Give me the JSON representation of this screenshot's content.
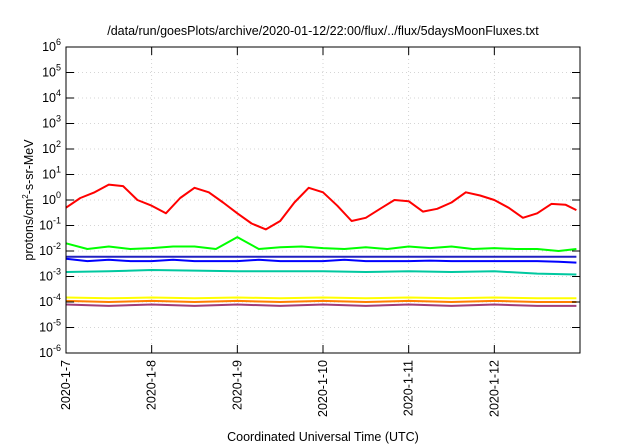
{
  "chart_data": {
    "type": "line",
    "title": "/data/run/goesPlots/archive/2020-01-12/22:00/flux/../flux/5daysMoonFluxes.txt",
    "xlabel": "Coordinated Universal Time (UTC)",
    "ylabel": "protons/cm²-s-sr-MeV",
    "ylabel_parts": {
      "pre": "protons/cm",
      "sup": "2",
      "post": "-s-sr-MeV"
    },
    "yscale": "log",
    "ylim": [
      1e-06,
      1000000.0
    ],
    "xlim": [
      "2020-01-07",
      "2020-01-13"
    ],
    "grid": true,
    "legend": "none",
    "y_ticks": [
      {
        "base": "10",
        "exp": "-6",
        "value": 1e-06
      },
      {
        "base": "10",
        "exp": "-5",
        "value": 1e-05
      },
      {
        "base": "10",
        "exp": "-4",
        "value": 0.0001
      },
      {
        "base": "10",
        "exp": "-3",
        "value": 0.001
      },
      {
        "base": "10",
        "exp": "-2",
        "value": 0.01
      },
      {
        "base": "10",
        "exp": "-1",
        "value": 0.1
      },
      {
        "base": "10",
        "exp": "0",
        "value": 1
      },
      {
        "base": "10",
        "exp": "1",
        "value": 10
      },
      {
        "base": "10",
        "exp": "2",
        "value": 100
      },
      {
        "base": "10",
        "exp": "3",
        "value": 1000
      },
      {
        "base": "10",
        "exp": "4",
        "value": 10000
      },
      {
        "base": "10",
        "exp": "5",
        "value": 100000
      },
      {
        "base": "10",
        "exp": "6",
        "value": 1000000
      }
    ],
    "x_ticks": [
      "2020-1-7",
      "2020-1-8",
      "2020-1-9",
      "2020-1-10",
      "2020-1-11",
      "2020-1-12"
    ],
    "series": [
      {
        "color": "#ff0000",
        "x": [
          "2020-01-07 00:00",
          "2020-01-07 04:00",
          "2020-01-07 08:00",
          "2020-01-07 12:00",
          "2020-01-07 16:00",
          "2020-01-07 20:00",
          "2020-01-08 00:00",
          "2020-01-08 04:00",
          "2020-01-08 08:00",
          "2020-01-08 12:00",
          "2020-01-08 16:00",
          "2020-01-08 20:00",
          "2020-01-09 00:00",
          "2020-01-09 04:00",
          "2020-01-09 08:00",
          "2020-01-09 12:00",
          "2020-01-09 16:00",
          "2020-01-09 20:00",
          "2020-01-10 00:00",
          "2020-01-10 04:00",
          "2020-01-10 08:00",
          "2020-01-10 12:00",
          "2020-01-10 16:00",
          "2020-01-10 20:00",
          "2020-01-11 00:00",
          "2020-01-11 04:00",
          "2020-01-11 08:00",
          "2020-01-11 12:00",
          "2020-01-11 16:00",
          "2020-01-11 20:00",
          "2020-01-12 00:00",
          "2020-01-12 04:00",
          "2020-01-12 08:00",
          "2020-01-12 12:00",
          "2020-01-12 16:00",
          "2020-01-12 20:00",
          "2020-01-12 23:00"
        ],
        "y": [
          0.5,
          1.2,
          2.0,
          4.0,
          3.5,
          1.0,
          0.6,
          0.3,
          1.2,
          3.0,
          2.0,
          0.8,
          0.3,
          0.12,
          0.07,
          0.15,
          0.8,
          3.0,
          2.0,
          0.6,
          0.15,
          0.2,
          0.45,
          1.0,
          0.9,
          0.35,
          0.45,
          0.8,
          2.0,
          1.5,
          1.0,
          0.5,
          0.2,
          0.3,
          0.7,
          0.65,
          0.4
        ]
      },
      {
        "color": "#00ff00",
        "x": [
          "2020-01-07 00:00",
          "2020-01-07 06:00",
          "2020-01-07 12:00",
          "2020-01-07 18:00",
          "2020-01-08 00:00",
          "2020-01-08 06:00",
          "2020-01-08 12:00",
          "2020-01-08 18:00",
          "2020-01-09 00:00",
          "2020-01-09 06:00",
          "2020-01-09 12:00",
          "2020-01-09 18:00",
          "2020-01-10 00:00",
          "2020-01-10 06:00",
          "2020-01-10 12:00",
          "2020-01-10 18:00",
          "2020-01-11 00:00",
          "2020-01-11 06:00",
          "2020-01-11 12:00",
          "2020-01-11 18:00",
          "2020-01-12 00:00",
          "2020-01-12 06:00",
          "2020-01-12 12:00",
          "2020-01-12 18:00",
          "2020-01-12 23:00"
        ],
        "y": [
          0.02,
          0.012,
          0.015,
          0.012,
          0.013,
          0.015,
          0.015,
          0.012,
          0.035,
          0.012,
          0.014,
          0.015,
          0.013,
          0.012,
          0.014,
          0.012,
          0.015,
          0.013,
          0.015,
          0.012,
          0.013,
          0.012,
          0.012,
          0.01,
          0.012
        ]
      },
      {
        "color": "#0000ff",
        "x": [
          "2020-01-07 00:00",
          "2020-01-07 06:00",
          "2020-01-07 12:00",
          "2020-01-07 18:00",
          "2020-01-08 00:00",
          "2020-01-08 06:00",
          "2020-01-08 12:00",
          "2020-01-08 18:00",
          "2020-01-09 00:00",
          "2020-01-09 06:00",
          "2020-01-09 12:00",
          "2020-01-09 18:00",
          "2020-01-10 00:00",
          "2020-01-10 06:00",
          "2020-01-10 12:00",
          "2020-01-10 18:00",
          "2020-01-11 00:00",
          "2020-01-11 06:00",
          "2020-01-11 12:00",
          "2020-01-11 18:00",
          "2020-01-12 00:00",
          "2020-01-12 06:00",
          "2020-01-12 12:00",
          "2020-01-12 18:00",
          "2020-01-12 23:00"
        ],
        "y": [
          0.005,
          0.004,
          0.0045,
          0.004,
          0.004,
          0.0045,
          0.004,
          0.004,
          0.004,
          0.0045,
          0.004,
          0.004,
          0.004,
          0.0045,
          0.004,
          0.004,
          0.004,
          0.0042,
          0.004,
          0.004,
          0.004,
          0.004,
          0.004,
          0.0038,
          0.0035
        ]
      },
      {
        "color": "#2020c0",
        "x": [
          "2020-01-07 00:00",
          "2020-01-07 12:00",
          "2020-01-08 00:00",
          "2020-01-08 12:00",
          "2020-01-09 00:00",
          "2020-01-09 12:00",
          "2020-01-10 00:00",
          "2020-01-10 12:00",
          "2020-01-11 00:00",
          "2020-01-11 12:00",
          "2020-01-12 00:00",
          "2020-01-12 12:00",
          "2020-01-12 23:00"
        ],
        "y": [
          0.006,
          0.006,
          0.006,
          0.006,
          0.006,
          0.006,
          0.006,
          0.006,
          0.006,
          0.006,
          0.006,
          0.006,
          0.006
        ]
      },
      {
        "color": "#00c8a0",
        "x": [
          "2020-01-07 00:00",
          "2020-01-07 12:00",
          "2020-01-08 00:00",
          "2020-01-08 12:00",
          "2020-01-09 00:00",
          "2020-01-09 12:00",
          "2020-01-10 00:00",
          "2020-01-10 12:00",
          "2020-01-11 00:00",
          "2020-01-11 12:00",
          "2020-01-12 00:00",
          "2020-01-12 12:00",
          "2020-01-12 23:00"
        ],
        "y": [
          0.0015,
          0.0016,
          0.0018,
          0.0017,
          0.0016,
          0.0016,
          0.0016,
          0.0015,
          0.0016,
          0.0015,
          0.0016,
          0.0013,
          0.0012
        ]
      },
      {
        "color": "#ffff00",
        "x": [
          "2020-01-07 00:00",
          "2020-01-07 12:00",
          "2020-01-08 00:00",
          "2020-01-08 12:00",
          "2020-01-09 00:00",
          "2020-01-09 12:00",
          "2020-01-10 00:00",
          "2020-01-10 12:00",
          "2020-01-11 00:00",
          "2020-01-11 12:00",
          "2020-01-12 00:00",
          "2020-01-12 12:00",
          "2020-01-12 23:00"
        ],
        "y": [
          0.00015,
          0.00014,
          0.00015,
          0.00014,
          0.00015,
          0.00014,
          0.00015,
          0.00014,
          0.00015,
          0.00014,
          0.00015,
          0.00014,
          0.00014
        ]
      },
      {
        "color": "#ff8000",
        "x": [
          "2020-01-07 00:00",
          "2020-01-07 12:00",
          "2020-01-08 00:00",
          "2020-01-08 12:00",
          "2020-01-09 00:00",
          "2020-01-09 12:00",
          "2020-01-10 00:00",
          "2020-01-10 12:00",
          "2020-01-11 00:00",
          "2020-01-11 12:00",
          "2020-01-12 00:00",
          "2020-01-12 12:00",
          "2020-01-12 23:00"
        ],
        "y": [
          0.00011,
          0.0001,
          0.00011,
          0.0001,
          0.00011,
          0.0001,
          0.00011,
          0.0001,
          0.00011,
          0.0001,
          0.00011,
          0.0001,
          0.0001
        ]
      },
      {
        "color": "#a03c78",
        "x": [
          "2020-01-07 00:00",
          "2020-01-07 12:00",
          "2020-01-08 00:00",
          "2020-01-08 12:00",
          "2020-01-09 00:00",
          "2020-01-09 12:00",
          "2020-01-10 00:00",
          "2020-01-10 12:00",
          "2020-01-11 00:00",
          "2020-01-11 12:00",
          "2020-01-12 00:00",
          "2020-01-12 12:00",
          "2020-01-12 23:00"
        ],
        "y": [
          8e-05,
          7e-05,
          8e-05,
          7e-05,
          8e-05,
          7e-05,
          8e-05,
          7e-05,
          8e-05,
          7e-05,
          8e-05,
          7e-05,
          7e-05
        ]
      }
    ]
  }
}
